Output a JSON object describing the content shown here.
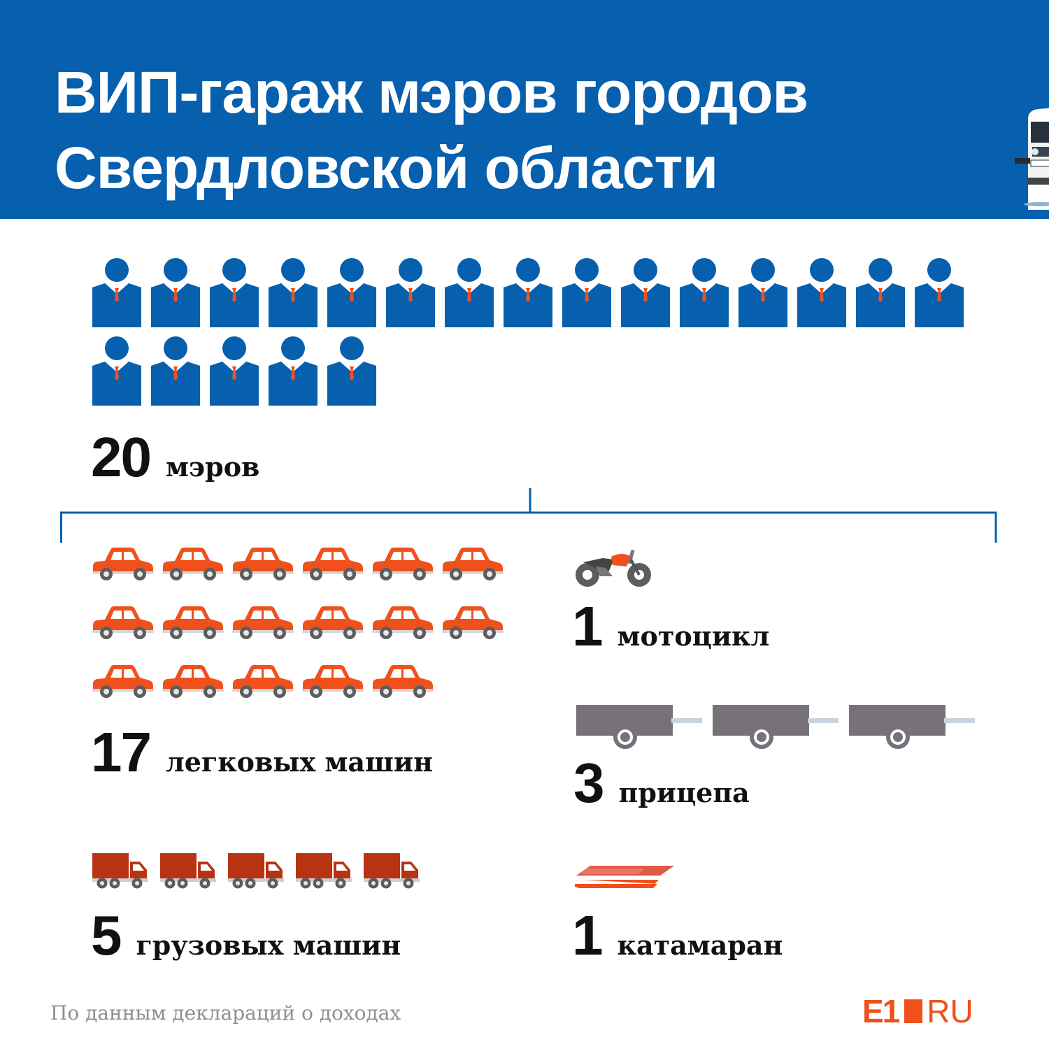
{
  "header": {
    "title_line1": "ВИП-гараж мэров городов",
    "title_line2": "Свердловской области",
    "background_color": "#0660ad"
  },
  "mayors": {
    "count": "20",
    "label": "мэров",
    "icon": "person-icon",
    "icons_shown": 20
  },
  "cars": {
    "count": "17",
    "label": "легковых машин",
    "icon": "car-icon",
    "icons_shown": 17
  },
  "trucks": {
    "count": "5",
    "label": "грузовых машин",
    "icon": "truck-icon",
    "icons_shown": 5
  },
  "motorcycles": {
    "count": "1",
    "label": "мотоцикл",
    "icon": "motorcycle-icon",
    "icons_shown": 1
  },
  "trailers": {
    "count": "3",
    "label": "прицепа",
    "icon": "trailer-icon",
    "icons_shown": 3
  },
  "catamarans": {
    "count": "1",
    "label": "катамаран",
    "icon": "catamaran-icon",
    "icons_shown": 1
  },
  "footer": {
    "source": "По данным деклараций о доходах",
    "logo_main": "E1",
    "logo_suffix": "RU"
  },
  "colors": {
    "accent": "#f0501c",
    "mayor": "#0660ad",
    "trailer": "#77727a",
    "text": "#111111"
  }
}
